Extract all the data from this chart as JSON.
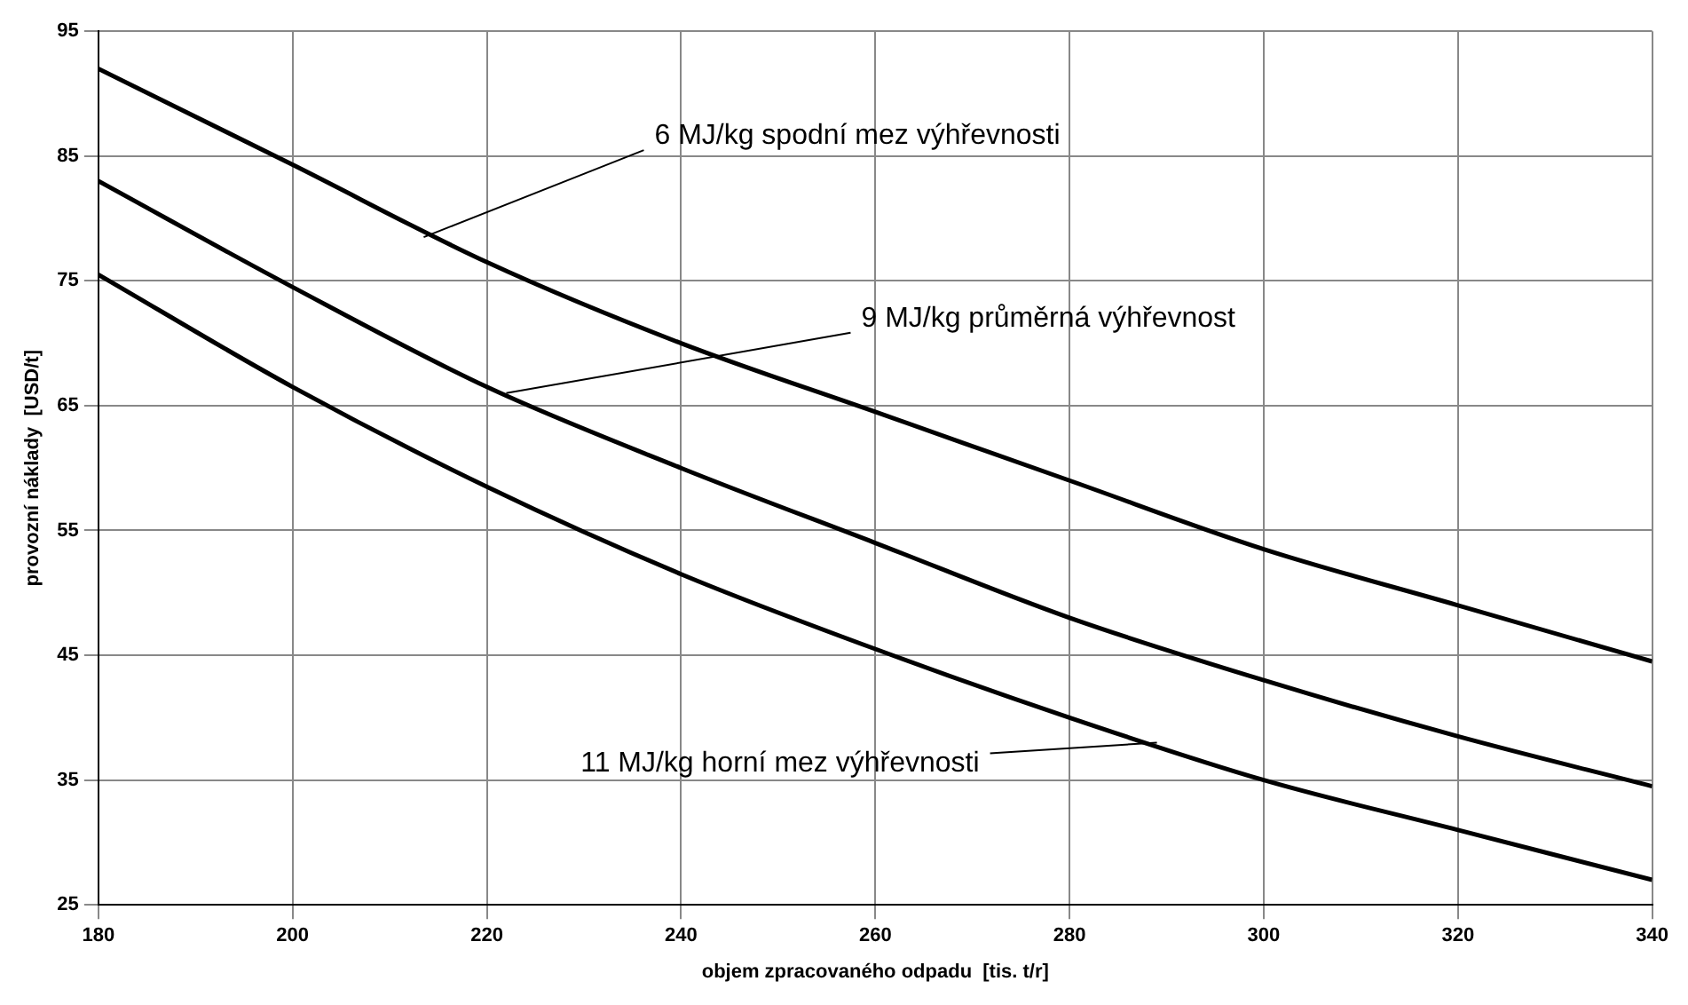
{
  "chart_data": {
    "type": "line",
    "xlabel": "objem zpracovaného odpadu  [tis. t/r]",
    "ylabel": "provozní náklady  [USD/t]",
    "x": [
      180,
      200,
      220,
      240,
      260,
      280,
      300,
      320,
      340
    ],
    "series": [
      {
        "color": "#000000",
        "values": [
          92,
          84.3,
          76.5,
          70,
          64.5,
          59,
          53.5,
          49,
          44.5
        ]
      },
      {
        "color": "#000000",
        "values": [
          83,
          74.5,
          66.5,
          60,
          54,
          48,
          43,
          38.5,
          34.5
        ]
      },
      {
        "color": "#000000",
        "values": [
          75.5,
          66.5,
          58.5,
          51.5,
          45.5,
          40,
          35,
          31,
          27
        ]
      }
    ],
    "annotations": [
      {
        "text": "6 MJ/kg spodní mez výhřevnosti",
        "x": 213.5,
        "y": 78.5
      },
      {
        "text": "9 MJ/kg průměrná výhřevnost",
        "x": 222,
        "y": 66
      },
      {
        "text": "11 MJ/kg horní mez výhřevnosti",
        "x": 289,
        "y": 38
      }
    ],
    "xlim": [
      180,
      340
    ],
    "xticks": [
      180,
      200,
      220,
      240,
      260,
      280,
      300,
      320,
      340
    ],
    "ylim": [
      25,
      95
    ],
    "yticks": [
      25,
      35,
      45,
      55,
      65,
      75,
      85,
      95
    ],
    "grid": true,
    "legend": false,
    "marker": "none",
    "line_style": "solid"
  }
}
